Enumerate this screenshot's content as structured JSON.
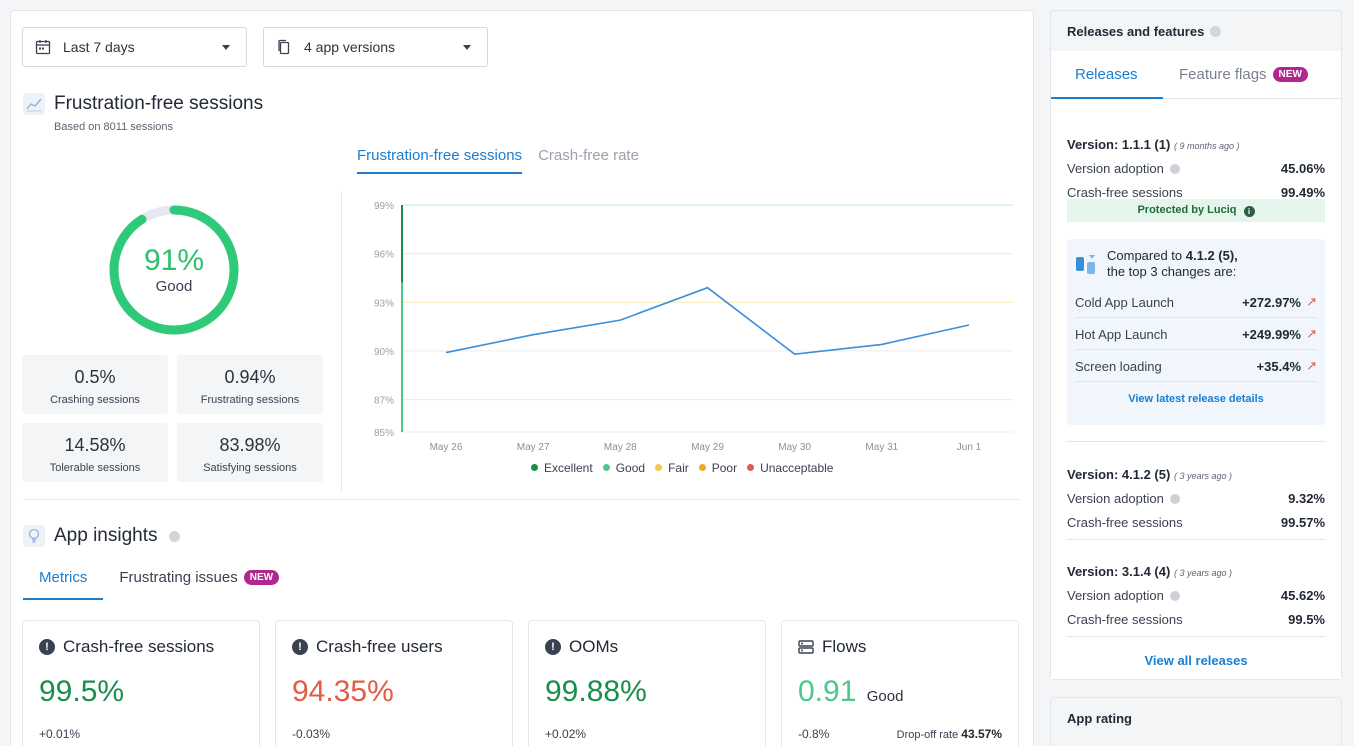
{
  "filters": {
    "date_range": "Last 7 days",
    "versions": "4 app versions"
  },
  "frustration": {
    "title": "Frustration-free sessions",
    "subtitle": "Based on 8011 sessions",
    "score_pct": "91%",
    "score_label": "Good",
    "score_value": 0.91,
    "stats": [
      {
        "value": "0.5%",
        "label": "Crashing sessions"
      },
      {
        "value": "0.94%",
        "label": "Frustrating sessions"
      },
      {
        "value": "14.58%",
        "label": "Tolerable sessions"
      },
      {
        "value": "83.98%",
        "label": "Satisfying sessions"
      }
    ],
    "tabs": [
      "Frustration-free sessions",
      "Crash-free rate"
    ]
  },
  "chart_data": {
    "type": "line",
    "title": "",
    "x": [
      "May 26",
      "May 27",
      "May 28",
      "May 29",
      "May 30",
      "May 31",
      "Jun 1"
    ],
    "series": [
      {
        "values": [
          89.9,
          91.0,
          91.9,
          93.9,
          89.8,
          90.4,
          91.6
        ]
      }
    ],
    "yticks": [
      "99%",
      "96%",
      "93%",
      "90%",
      "87%",
      "85%"
    ],
    "ytick_values": [
      99,
      96,
      93,
      90,
      87,
      85
    ],
    "ylim": [
      85,
      99
    ],
    "legend": [
      {
        "name": "Excellent",
        "color": "#1a8f4d"
      },
      {
        "name": "Good",
        "color": "#4cc98a"
      },
      {
        "name": "Fair",
        "color": "#f2c94c"
      },
      {
        "name": "Poor",
        "color": "#f5a623"
      },
      {
        "name": "Unacceptable",
        "color": "#e05a4e"
      }
    ],
    "line_color": "#3a8fd9"
  },
  "insights": {
    "title": "App insights",
    "tabs": [
      "Metrics",
      "Frustrating issues"
    ],
    "new_badge": "NEW",
    "metrics": [
      {
        "title": "Crash-free sessions",
        "value": "99.5%",
        "delta": "+0.01%",
        "color": "#1a8f4d",
        "icon": "alert-icon"
      },
      {
        "title": "Crash-free users",
        "value": "94.35%",
        "delta": "-0.03%",
        "color": "#e25c46",
        "icon": "alert-icon"
      },
      {
        "title": "OOMs",
        "value": "99.88%",
        "delta": "+0.02%",
        "color": "#1a8f4d",
        "icon": "alert-icon"
      },
      {
        "title": "Flows",
        "value": "0.91",
        "value_label": "Good",
        "delta": "-0.8%",
        "extra_label": "Drop-off rate",
        "extra_value": "43.57%",
        "color": "#4cc98a",
        "icon": "flows-icon"
      }
    ]
  },
  "releases": {
    "header": "Releases and features",
    "tabs": [
      "Releases",
      "Feature flags"
    ],
    "new_badge": "NEW",
    "items": [
      {
        "version": "Version: 1.1.1 (1)",
        "age": "( 9 months ago )",
        "adoption_label": "Version adoption",
        "adoption": "45.06%",
        "crash_label": "Crash-free sessions",
        "crash": "99.49%"
      },
      {
        "version": "Version: 4.1.2 (5)",
        "age": "( 3 years ago )",
        "adoption_label": "Version adoption",
        "adoption": "9.32%",
        "crash_label": "Crash-free sessions",
        "crash": "99.57%"
      },
      {
        "version": "Version: 3.1.4 (4)",
        "age": "( 3 years ago )",
        "adoption_label": "Version adoption",
        "adoption": "45.62%",
        "crash_label": "Crash-free sessions",
        "crash": "99.5%"
      }
    ],
    "protected": "Protected by Luciq",
    "compare_prefix": "Compared to ",
    "compare_version": "4.1.2 (5),",
    "compare_line2": "the top 3 changes are:",
    "changes": [
      {
        "label": "Cold App Launch",
        "value": "+272.97%"
      },
      {
        "label": "Hot App Launch",
        "value": "+249.99%"
      },
      {
        "label": "Screen loading",
        "value": "+35.4%"
      }
    ],
    "view_latest": "View latest release details",
    "view_all": "View all releases"
  },
  "app_rating": {
    "header": "App rating"
  }
}
